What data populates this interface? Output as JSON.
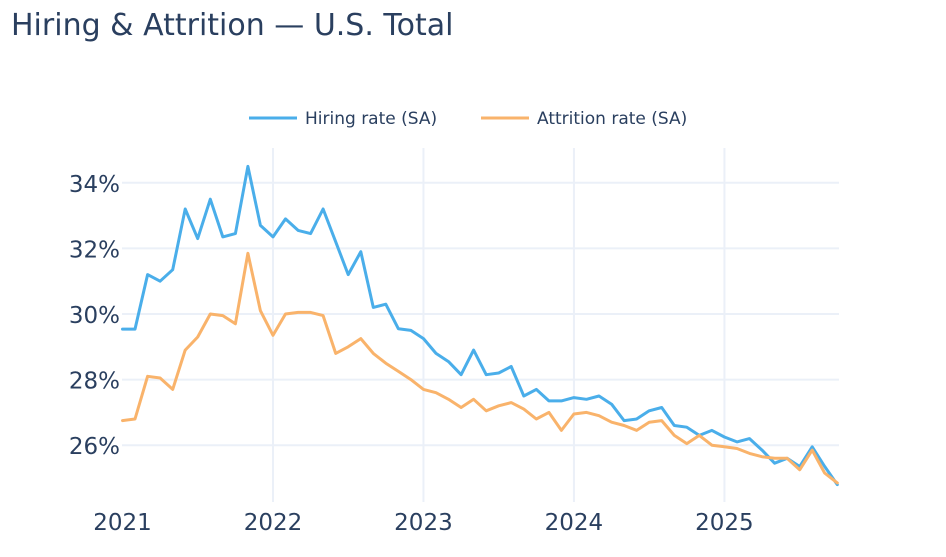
{
  "title": "Hiring & Attrition — U.S. Total",
  "chart_data": {
    "type": "line",
    "title": "Hiring & Attrition — U.S. Total",
    "xlabel": "",
    "ylabel": "",
    "x_start": "2021-01",
    "x_end": "2025-10",
    "x_frequency": "monthly",
    "x_ticks": [
      "2021",
      "2022",
      "2023",
      "2024",
      "2025"
    ],
    "y_ticks": [
      "26%",
      "28%",
      "30%",
      "32%",
      "34%"
    ],
    "y_tick_values": [
      26,
      28,
      30,
      32,
      34
    ],
    "ylim": [
      24.6,
      35.4
    ],
    "grid": true,
    "legend_position": "top",
    "series": [
      {
        "name": "Hiring rate (SA)",
        "color": "#4aaeea",
        "values": [
          29.54,
          29.54,
          31.2,
          31.0,
          31.35,
          33.2,
          32.3,
          33.5,
          32.35,
          32.45,
          34.5,
          32.7,
          32.35,
          32.9,
          32.55,
          32.45,
          33.2,
          32.2,
          31.2,
          31.9,
          30.2,
          30.3,
          29.55,
          29.5,
          29.25,
          28.8,
          28.55,
          28.15,
          28.9,
          28.15,
          28.2,
          28.4,
          27.5,
          27.7,
          27.35,
          27.35,
          27.45,
          27.4,
          27.5,
          27.25,
          26.75,
          26.8,
          27.05,
          27.15,
          26.6,
          26.55,
          26.3,
          26.45,
          26.25,
          26.1,
          26.2,
          25.85,
          25.45,
          25.6,
          25.35,
          25.95,
          25.35,
          24.8
        ]
      },
      {
        "name": "Attrition rate (SA)",
        "color": "#f9b36b",
        "values": [
          26.75,
          26.8,
          28.1,
          28.05,
          27.7,
          28.9,
          29.3,
          30.0,
          29.95,
          29.7,
          31.85,
          30.1,
          29.35,
          30.0,
          30.05,
          30.05,
          29.95,
          28.8,
          29.0,
          29.25,
          28.8,
          28.5,
          28.25,
          28.0,
          27.7,
          27.6,
          27.4,
          27.15,
          27.4,
          27.05,
          27.2,
          27.3,
          27.1,
          26.8,
          27.0,
          26.45,
          26.95,
          27.0,
          26.9,
          26.7,
          26.6,
          26.45,
          26.7,
          26.75,
          26.3,
          26.05,
          26.3,
          26.0,
          25.95,
          25.9,
          25.75,
          25.65,
          25.6,
          25.6,
          25.25,
          25.85,
          25.15,
          24.85
        ]
      }
    ]
  }
}
